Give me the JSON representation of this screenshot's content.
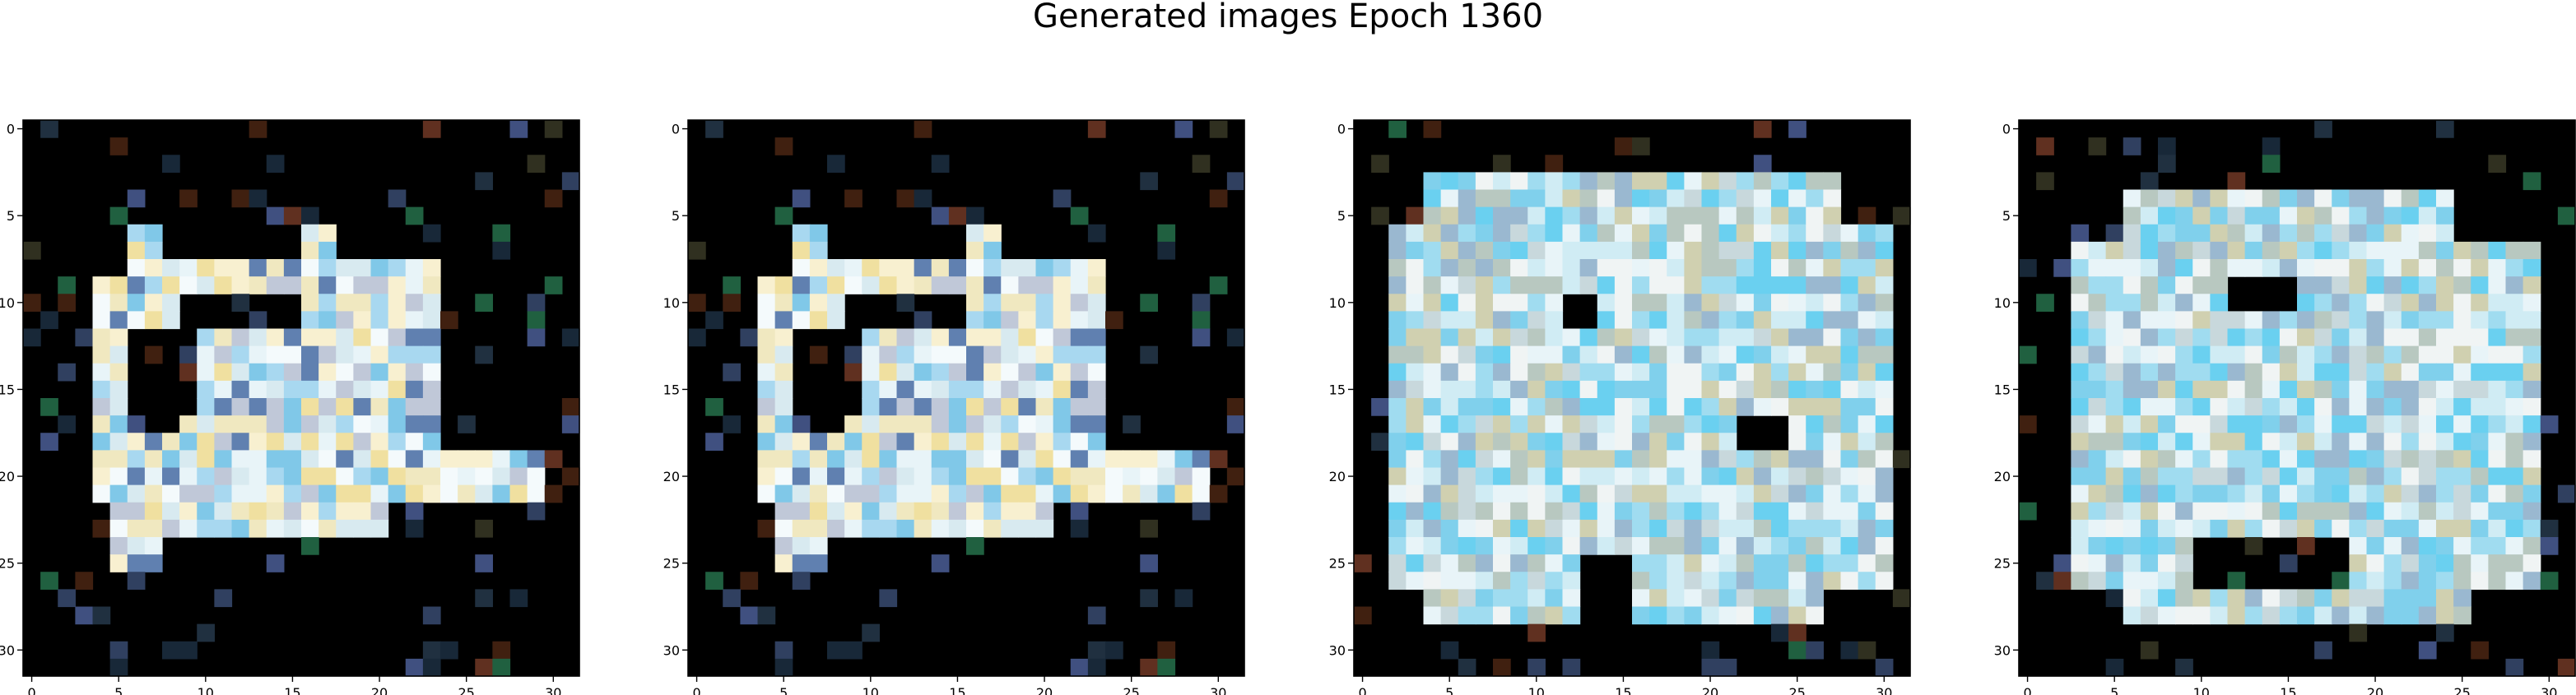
{
  "figure": {
    "title": "Generated images Epoch 1360"
  },
  "chart_data": [
    {
      "type": "heatmap",
      "title": "",
      "xlabel": "",
      "ylabel": "",
      "xlim": [
        -0.5,
        31.5
      ],
      "ylim": [
        31.5,
        -0.5
      ],
      "xticks": [
        0,
        5,
        10,
        15,
        20,
        25,
        30
      ],
      "yticks": [
        0,
        5,
        10,
        15,
        20,
        25,
        30
      ],
      "grid": false,
      "pixel_grid": [
        32,
        32
      ],
      "description_colors": [
        "#000000",
        "#e8f4f8",
        "#f0e0a0",
        "#80c8e8",
        "#4060a0",
        "#80f0a0"
      ]
    },
    {
      "type": "heatmap",
      "title": "",
      "xlabel": "",
      "ylabel": "",
      "xlim": [
        -0.5,
        31.5
      ],
      "ylim": [
        31.5,
        -0.5
      ],
      "xticks": [
        0,
        5,
        10,
        15,
        20,
        25,
        30
      ],
      "yticks": [
        0,
        5,
        10,
        15,
        20,
        25,
        30
      ],
      "grid": false,
      "pixel_grid": [
        32,
        32
      ],
      "description_colors": [
        "#000000",
        "#e8f4f8",
        "#f0e0a0",
        "#80c8e8",
        "#4060a0",
        "#80f0a0"
      ]
    },
    {
      "type": "heatmap",
      "title": "",
      "xlabel": "",
      "ylabel": "",
      "xlim": [
        -0.5,
        31.5
      ],
      "ylim": [
        31.5,
        -0.5
      ],
      "xticks": [
        0,
        5,
        10,
        15,
        20,
        25,
        30
      ],
      "yticks": [
        0,
        5,
        10,
        15,
        20,
        25,
        30
      ],
      "grid": false,
      "pixel_grid": [
        32,
        32
      ],
      "description_colors": [
        "#000000",
        "#e0f0f8",
        "#90d8f0",
        "#c0c0a0",
        "#6a5a30",
        "#304060"
      ]
    },
    {
      "type": "heatmap",
      "title": "",
      "xlabel": "",
      "ylabel": "",
      "xlim": [
        -0.5,
        31.5
      ],
      "ylim": [
        31.5,
        -0.5
      ],
      "xticks": [
        0,
        5,
        10,
        15,
        20,
        25,
        30
      ],
      "yticks": [
        0,
        5,
        10,
        15,
        20,
        25,
        30
      ],
      "grid": false,
      "pixel_grid": [
        32,
        32
      ],
      "description_colors": [
        "#000000",
        "#e0f0f8",
        "#90d8f0",
        "#c0c0a0",
        "#f0e080",
        "#304060"
      ]
    }
  ]
}
